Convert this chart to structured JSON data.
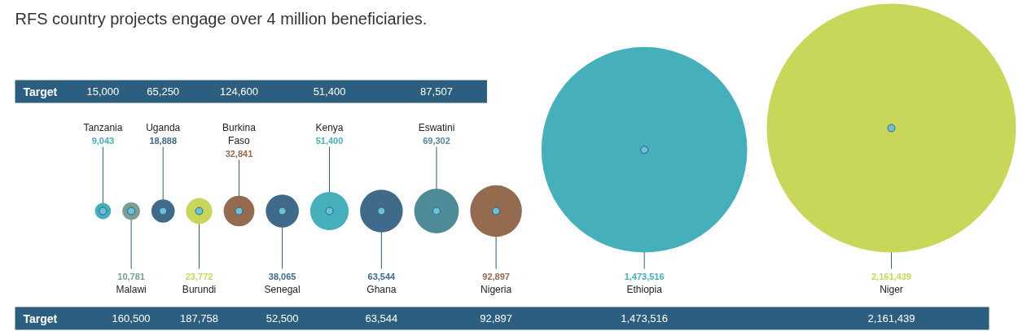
{
  "chart_data": {
    "type": "other",
    "title": "RFS country projects engage over 4 million beneficiaries.",
    "categories": [
      "Tanzania",
      "Malawi",
      "Uganda",
      "Burundi",
      "Burkina Faso",
      "Senegal",
      "Kenya",
      "Ghana",
      "Eswatini",
      "Nigeria",
      "Ethiopia",
      "Niger"
    ],
    "values": [
      9043,
      10781,
      18888,
      23772,
      32841,
      38065,
      51400,
      63544,
      69302,
      92897,
      1473516,
      2161439
    ],
    "colors": [
      "#45b0bb",
      "#7a9e94",
      "#3f6a8a",
      "#c8d65a",
      "#956b4f",
      "#3f6a8a",
      "#45b0bb",
      "#3f6a8a",
      "#4f8a98",
      "#956b4f",
      "#45b0bb",
      "#c8d65a"
    ],
    "value_labels": [
      "9,043",
      "10,781",
      "18,888",
      "23,772",
      "32,841",
      "38,065",
      "51,400",
      "63,544",
      "69,302",
      "92,897",
      "1,473,516",
      "2,161,439"
    ],
    "annotations": [
      "Target",
      {
        "text": "15,000",
        "x": "Tanzania"
      },
      {
        "text": "65,250",
        "x": "Uganda"
      },
      {
        "text": "124,600",
        "x": "Burkina Faso"
      },
      {
        "text": "51,400",
        "x": "Kenya"
      },
      {
        "text": "87,507",
        "x": "Eswatini"
      },
      "Target",
      {
        "text": "160,500",
        "x": "Malawi"
      },
      {
        "text": "187,758",
        "x": "Burundi"
      },
      {
        "text": "52,500",
        "x": "Senegal"
      },
      {
        "text": "63,544",
        "x": "Ghana"
      },
      {
        "text": "92,897",
        "x": "Nigeria"
      },
      {
        "text": "1,473,516",
        "x": "Ethiopia"
      },
      {
        "text": "2,161,439",
        "x": "Niger"
      }
    ]
  }
}
